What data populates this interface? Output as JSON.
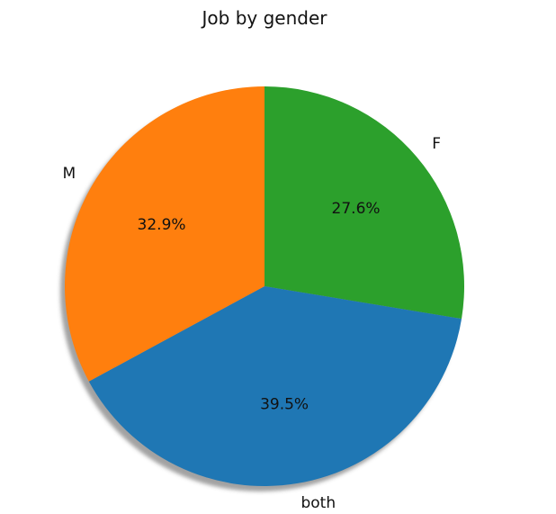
{
  "chart_data": {
    "type": "pie",
    "title": "Job by gender",
    "categories": [
      "F",
      "both",
      "M"
    ],
    "values": [
      27.6,
      39.5,
      32.9
    ],
    "percent_labels": [
      "27.6%",
      "39.5%",
      "32.9%"
    ],
    "colors": [
      "#2ca02c",
      "#1f77b4",
      "#ff7f0e"
    ],
    "start_angle_deg": 90,
    "direction": "clockwise",
    "shadow": true,
    "legend": "none"
  }
}
